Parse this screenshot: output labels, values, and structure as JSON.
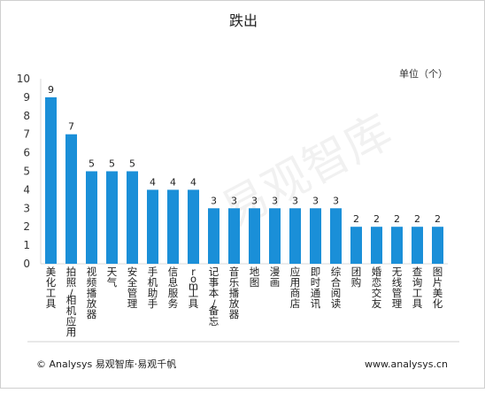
{
  "chart_data": {
    "type": "bar",
    "title": "跌出",
    "unit_label": "单位（个）",
    "categories": [
      "美化工具",
      "拍照/相机应用",
      "视频播放器",
      "天气",
      "安全管理",
      "手机助手",
      "信息服务",
      "rom工具",
      "记事本/备忘",
      "音乐播放器",
      "地图",
      "漫画",
      "应用商店",
      "即时通讯",
      "综合阅读",
      "团购",
      "婚恋交友",
      "无线管理",
      "查询工具",
      "图片美化"
    ],
    "values": [
      9,
      7,
      5,
      5,
      5,
      4,
      4,
      4,
      3,
      3,
      3,
      3,
      3,
      3,
      3,
      2,
      2,
      2,
      2,
      2
    ],
    "ylim": [
      0,
      10
    ],
    "yticks": [
      0,
      1,
      2,
      3,
      4,
      5,
      6,
      7,
      8,
      9,
      10
    ],
    "bar_color": "#1a8fd8",
    "grid": false,
    "xlabel": "",
    "ylabel": ""
  },
  "watermark_text": "易观智库",
  "footer": {
    "source": "© Analysys 易观智库·易观千帆",
    "url": "www.analysys.cn"
  }
}
